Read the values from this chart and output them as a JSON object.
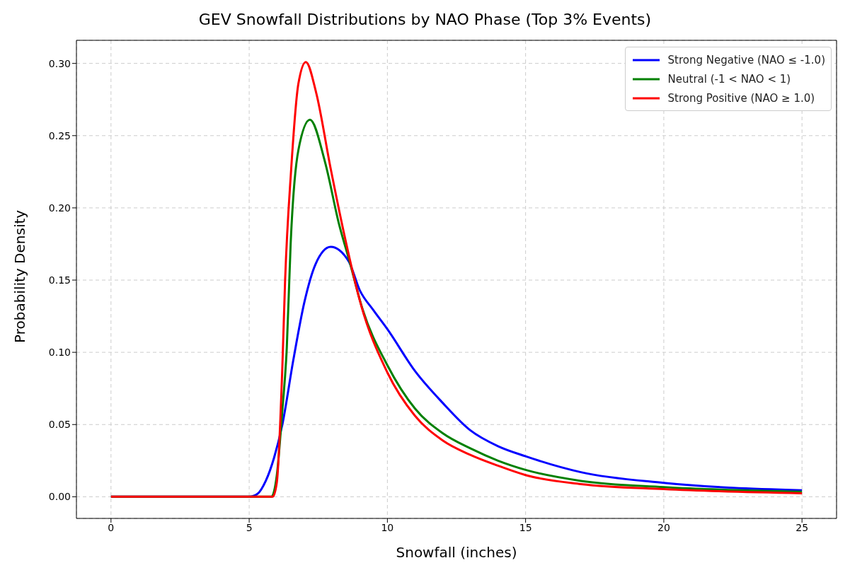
{
  "chart_data": {
    "type": "line",
    "title": "GEV Snowfall Distributions by NAO Phase (Top 3% Events)",
    "xlabel": "Snowfall (inches)",
    "ylabel": "Probability Density",
    "xlim": [
      -1.25,
      26.25
    ],
    "xticks": [
      0,
      5,
      10,
      15,
      20,
      25
    ],
    "ylim": [
      -0.015,
      0.316
    ],
    "yticks": [
      {
        "value": 0,
        "label": "0.00"
      },
      0.05,
      {
        "value": 0.1,
        "label": "0.10"
      },
      0.15,
      {
        "value": 0.2,
        "label": "0.20"
      },
      0.25,
      {
        "value": 0.3,
        "label": "0.30"
      }
    ],
    "grid": true,
    "legend": "top right",
    "line_style": "solid",
    "marker": "none",
    "series": [
      {
        "name": "Strong Negative (NAO ≤ -1.0)",
        "color": "#0000ff",
        "x": [
          0,
          5,
          5.3,
          5.6,
          5.9,
          6.2,
          6.6,
          7.0,
          7.4,
          7.95,
          8.6,
          9,
          9.5,
          10,
          11,
          12,
          13,
          14,
          15,
          17,
          20,
          25
        ],
        "values": [
          0,
          0,
          0.002,
          0.011,
          0.027,
          0.05,
          0.095,
          0.135,
          0.161,
          0.173,
          0.163,
          0.143,
          0.129,
          0.116,
          0.087,
          0.065,
          0.046,
          0.035,
          0.028,
          0.017,
          0.0096,
          0.0045
        ]
      },
      {
        "name": "Neutral (-1 < NAO < 1)",
        "color": "#008000",
        "x": [
          0,
          5.8,
          6.0,
          6.2,
          6.36,
          6.5,
          6.78,
          7.2,
          7.74,
          8.26,
          8.6,
          9.1,
          10,
          11,
          12,
          13,
          14,
          15,
          17,
          20,
          25
        ],
        "values": [
          0,
          0,
          0.015,
          0.06,
          0.103,
          0.175,
          0.24,
          0.261,
          0.232,
          0.188,
          0.165,
          0.13,
          0.091,
          0.061,
          0.044,
          0.0335,
          0.025,
          0.0186,
          0.011,
          0.0067,
          0.0035
        ]
      },
      {
        "name": "Strong Positive (NAO ≥ 1.0)",
        "color": "#ff0000",
        "x": [
          0,
          5.85,
          6.0,
          6.2,
          6.3,
          6.52,
          6.78,
          7.05,
          7.42,
          7.95,
          8.48,
          9.0,
          10,
          11,
          12,
          13,
          14,
          15,
          17,
          20,
          25
        ],
        "values": [
          0,
          0,
          0.01,
          0.09,
          0.15,
          0.227,
          0.286,
          0.301,
          0.28,
          0.227,
          0.178,
          0.136,
          0.086,
          0.056,
          0.039,
          0.029,
          0.0215,
          0.015,
          0.0088,
          0.0053,
          0.0024
        ]
      }
    ]
  }
}
